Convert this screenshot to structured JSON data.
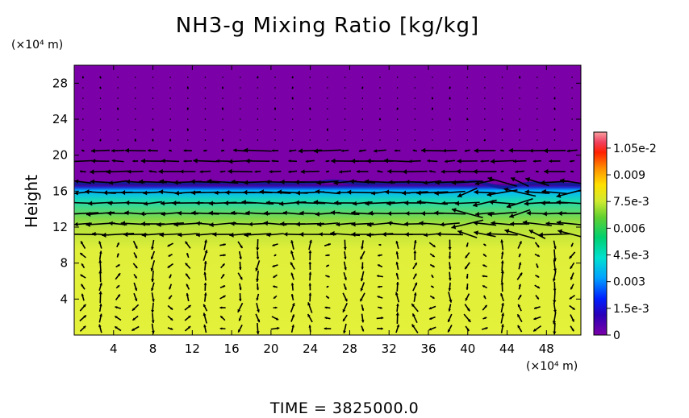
{
  "chart_data": {
    "type": "heatmap",
    "title": "NH3-g Mixing Ratio [kg/kg]",
    "ylabel": "Height",
    "x_unit_label": "(×10⁴ m)",
    "y_unit_label": "(×10⁴ m)",
    "x_ticks": [
      4,
      8,
      12,
      16,
      20,
      24,
      28,
      32,
      36,
      40,
      44,
      48
    ],
    "y_ticks": [
      4,
      8,
      12,
      16,
      20,
      24,
      28
    ],
    "xlim": [
      0,
      51.5
    ],
    "ylim": [
      0,
      30
    ],
    "grid": false,
    "overlay": "wind vector arrows",
    "colorbar": {
      "tick_labels": [
        "0",
        "1.5e-3",
        "0.003",
        "4.5e-3",
        "0.006",
        "7.5e-3",
        "0.009",
        "1.05e-2"
      ],
      "tick_values": [
        0,
        0.0015,
        0.003,
        0.0045,
        0.006,
        0.0075,
        0.009,
        0.0105
      ],
      "range": [
        0,
        0.0114
      ]
    },
    "field_profile": [
      {
        "height": 0,
        "value": 0.0076
      },
      {
        "height": 9.5,
        "value": 0.0075
      },
      {
        "height": 12,
        "value": 0.0066
      },
      {
        "height": 13,
        "value": 0.006
      },
      {
        "height": 15,
        "value": 0.0045
      },
      {
        "height": 16.3,
        "value": 0.003
      },
      {
        "height": 16.8,
        "value": 0.0
      },
      {
        "height": 30,
        "value": 0.0
      }
    ]
  },
  "footer": {
    "time_text": "TIME = 3825000.0"
  },
  "colors": {
    "background": "#ffffff",
    "upper_purple": "#7b00a8",
    "arrows": "#000000"
  }
}
